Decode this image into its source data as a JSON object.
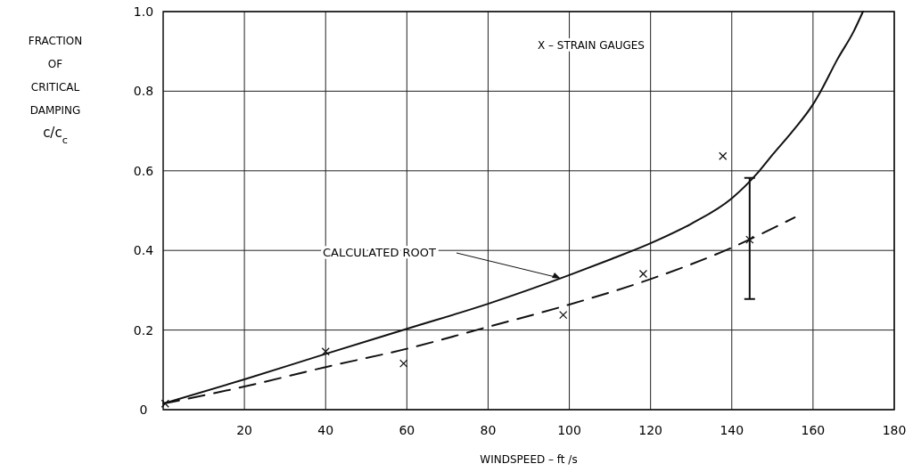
{
  "chart_data": {
    "type": "line",
    "xlabel": "WINDSPEED  –  ft /s",
    "ylabel": "FRACTION\nOF\nCRITICAL\nDAMPING\nc/c$_{c}$",
    "xlim": [
      0,
      180
    ],
    "ylim": [
      0,
      1.0
    ],
    "xticks": [
      20,
      40,
      60,
      80,
      100,
      120,
      140,
      160,
      180
    ],
    "yticks": [
      0,
      0.2,
      0.4,
      0.6,
      0.8,
      {
        "value": 1.0,
        "label": "1.0"
      }
    ],
    "grid": true,
    "annotations": [
      "CALCULATED ROOT",
      "X – STRAIN GAUGES"
    ],
    "series": [
      {
        "color": "#111111",
        "line_style": "solid",
        "x": [
          0,
          20,
          40,
          60,
          80,
          100,
          110,
          120,
          130,
          140,
          146.8,
          150,
          155,
          160,
          161.9,
          166,
          170,
          172.3
        ],
        "values": [
          0.015,
          0.076,
          0.14,
          0.203,
          0.266,
          0.338,
          0.377,
          0.418,
          0.467,
          0.531,
          0.6,
          0.64,
          0.7,
          0.767,
          0.8,
          0.88,
          0.95,
          1.0
        ]
      },
      {
        "color": "#111111",
        "line_style": "dashed",
        "x": [
          0,
          20,
          40,
          60,
          80,
          100,
          120,
          140,
          155.5
        ],
        "values": [
          0.015,
          0.058,
          0.107,
          0.153,
          0.208,
          0.264,
          0.328,
          0.407,
          0.483
        ]
      },
      {
        "type": "scatter",
        "color": "#111111",
        "marker": "cross",
        "x": [
          0.5,
          40,
          59.2,
          98.5,
          118.2,
          137.8,
          144.4
        ],
        "values": [
          0.015,
          0.146,
          0.116,
          0.238,
          0.341,
          0.637,
          0.427
        ],
        "errors": [
          null,
          null,
          null,
          null,
          null,
          null,
          [
            0.278,
            0.582
          ]
        ]
      }
    ]
  }
}
